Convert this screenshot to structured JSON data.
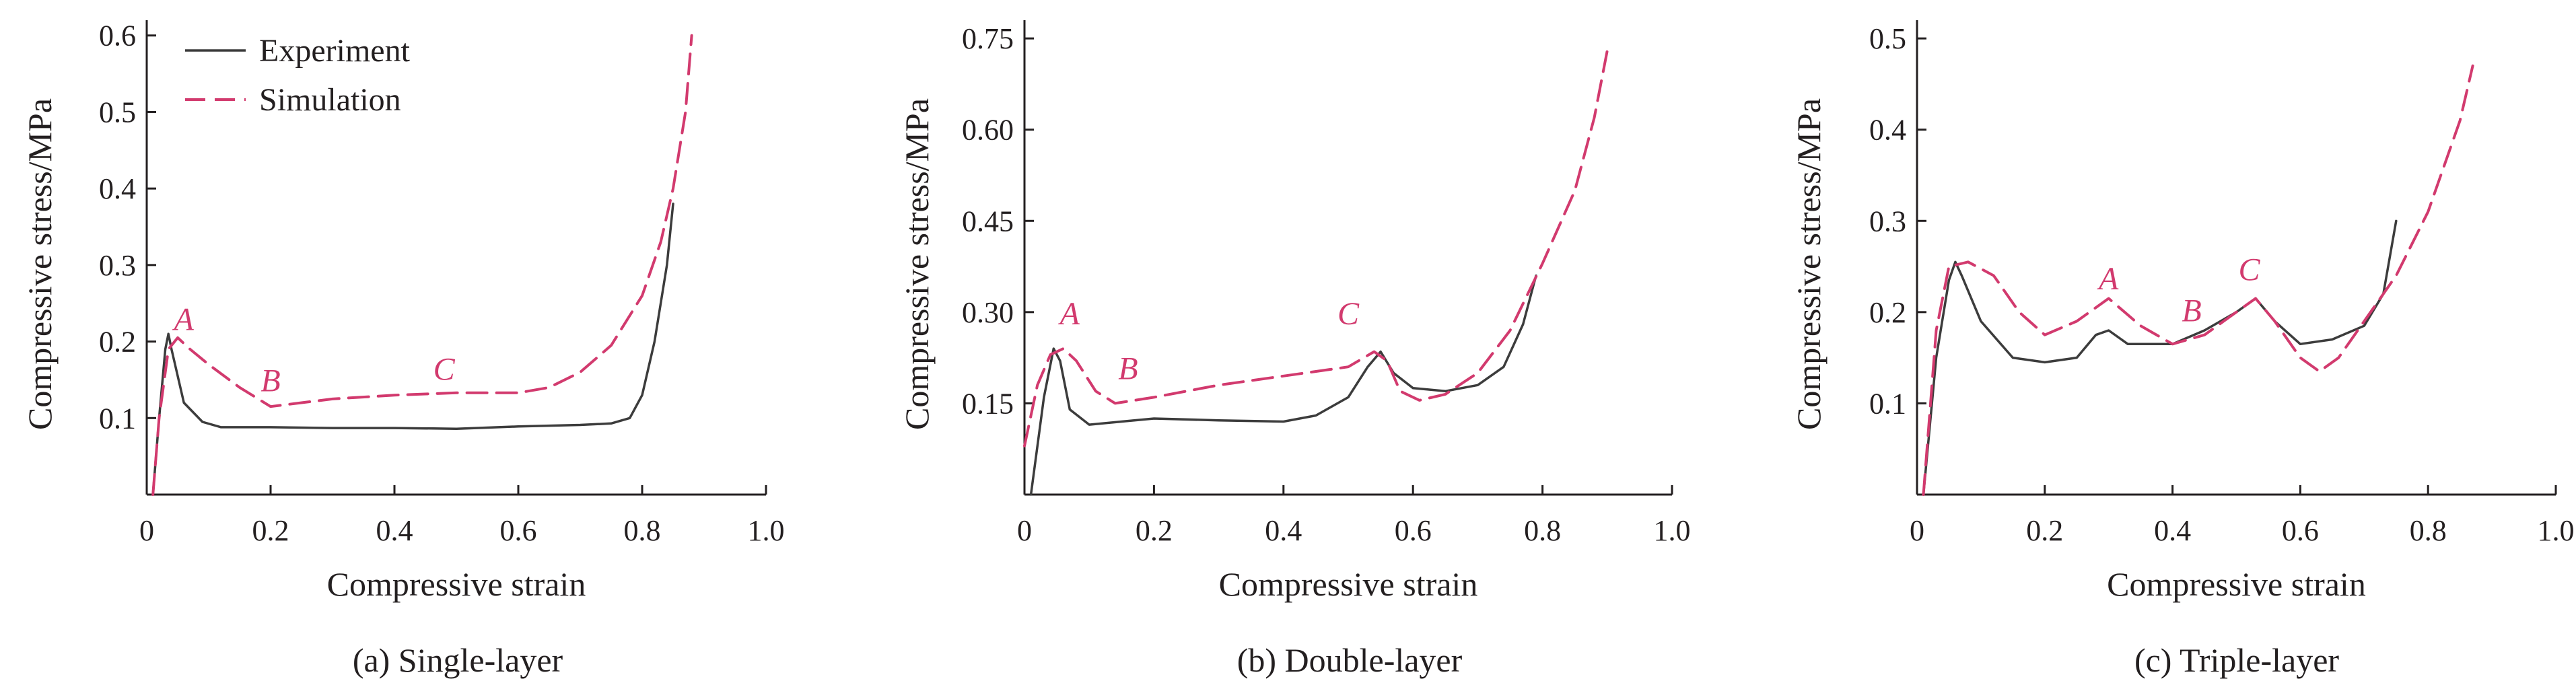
{
  "colors": {
    "experiment": "#3c3c3c",
    "simulation": "#d23a6e",
    "axis": "#231f20"
  },
  "legend": {
    "experiment": "Experiment",
    "simulation": "Simulation"
  },
  "chart_data": [
    {
      "type": "line",
      "caption": "(a) Single-layer",
      "xlabel": "Compressive strain",
      "ylabel": "Compressive stress/MPa",
      "xlim": [
        0,
        1.0
      ],
      "ylim": [
        0,
        0.62
      ],
      "x_ticks": [
        "0",
        "0.2",
        "0.4",
        "0.6",
        "0.8",
        "1.0"
      ],
      "x_tick_values": [
        0,
        0.2,
        0.4,
        0.6,
        0.8,
        1.0
      ],
      "y_ticks": [
        "0.1",
        "0.2",
        "0.3",
        "0.4",
        "0.5",
        "0.6"
      ],
      "y_tick_values": [
        0.1,
        0.2,
        0.3,
        0.4,
        0.5,
        0.6
      ],
      "legend": true,
      "series": [
        {
          "name": "Experiment",
          "style": "solid",
          "points": [
            [
              0.01,
              0
            ],
            [
              0.02,
              0.1
            ],
            [
              0.03,
              0.19
            ],
            [
              0.035,
              0.21
            ],
            [
              0.04,
              0.19
            ],
            [
              0.06,
              0.12
            ],
            [
              0.09,
              0.095
            ],
            [
              0.12,
              0.088
            ],
            [
              0.2,
              0.088
            ],
            [
              0.3,
              0.087
            ],
            [
              0.4,
              0.087
            ],
            [
              0.5,
              0.086
            ],
            [
              0.6,
              0.089
            ],
            [
              0.7,
              0.091
            ],
            [
              0.75,
              0.093
            ],
            [
              0.78,
              0.1
            ],
            [
              0.8,
              0.13
            ],
            [
              0.82,
              0.2
            ],
            [
              0.84,
              0.3
            ],
            [
              0.85,
              0.38
            ]
          ]
        },
        {
          "name": "Simulation",
          "style": "dashed",
          "points": [
            [
              0.01,
              0
            ],
            [
              0.02,
              0.1
            ],
            [
              0.035,
              0.19
            ],
            [
              0.05,
              0.205
            ],
            [
              0.07,
              0.19
            ],
            [
              0.1,
              0.17
            ],
            [
              0.15,
              0.14
            ],
            [
              0.2,
              0.115
            ],
            [
              0.25,
              0.12
            ],
            [
              0.3,
              0.125
            ],
            [
              0.4,
              0.13
            ],
            [
              0.5,
              0.133
            ],
            [
              0.6,
              0.133
            ],
            [
              0.65,
              0.14
            ],
            [
              0.7,
              0.16
            ],
            [
              0.75,
              0.195
            ],
            [
              0.8,
              0.26
            ],
            [
              0.83,
              0.33
            ],
            [
              0.85,
              0.4
            ],
            [
              0.87,
              0.5
            ],
            [
              0.88,
              0.6
            ]
          ]
        }
      ],
      "annotations": [
        {
          "text": "A",
          "x": 0.06,
          "y": 0.215
        },
        {
          "text": "B",
          "x": 0.2,
          "y": 0.135
        },
        {
          "text": "C",
          "x": 0.48,
          "y": 0.15
        }
      ]
    },
    {
      "type": "line",
      "caption": "(b) Double-layer",
      "xlabel": "Compressive strain",
      "ylabel": "Compressive stress/MPa",
      "xlim": [
        0,
        1.0
      ],
      "ylim": [
        0,
        0.78
      ],
      "x_ticks": [
        "0",
        "0.2",
        "0.4",
        "0.6",
        "0.8",
        "1.0"
      ],
      "x_tick_values": [
        0,
        0.2,
        0.4,
        0.6,
        0.8,
        1.0
      ],
      "y_ticks": [
        "0.15",
        "0.30",
        "0.45",
        "0.60",
        "0.75"
      ],
      "y_tick_values": [
        0.15,
        0.3,
        0.45,
        0.6,
        0.75
      ],
      "legend": false,
      "series": [
        {
          "name": "Experiment",
          "style": "solid",
          "points": [
            [
              0.01,
              0
            ],
            [
              0.03,
              0.16
            ],
            [
              0.045,
              0.24
            ],
            [
              0.055,
              0.22
            ],
            [
              0.07,
              0.14
            ],
            [
              0.1,
              0.115
            ],
            [
              0.15,
              0.12
            ],
            [
              0.2,
              0.125
            ],
            [
              0.3,
              0.122
            ],
            [
              0.4,
              0.12
            ],
            [
              0.45,
              0.13
            ],
            [
              0.5,
              0.16
            ],
            [
              0.53,
              0.21
            ],
            [
              0.55,
              0.235
            ],
            [
              0.57,
              0.2
            ],
            [
              0.6,
              0.175
            ],
            [
              0.65,
              0.17
            ],
            [
              0.7,
              0.18
            ],
            [
              0.74,
              0.21
            ],
            [
              0.77,
              0.28
            ],
            [
              0.79,
              0.36
            ]
          ]
        },
        {
          "name": "Simulation",
          "style": "dashed",
          "points": [
            [
              0.0,
              0.08
            ],
            [
              0.02,
              0.18
            ],
            [
              0.04,
              0.23
            ],
            [
              0.06,
              0.24
            ],
            [
              0.08,
              0.22
            ],
            [
              0.11,
              0.17
            ],
            [
              0.14,
              0.15
            ],
            [
              0.2,
              0.16
            ],
            [
              0.3,
              0.18
            ],
            [
              0.4,
              0.195
            ],
            [
              0.5,
              0.21
            ],
            [
              0.54,
              0.235
            ],
            [
              0.56,
              0.22
            ],
            [
              0.58,
              0.17
            ],
            [
              0.61,
              0.155
            ],
            [
              0.65,
              0.165
            ],
            [
              0.7,
              0.2
            ],
            [
              0.75,
              0.27
            ],
            [
              0.8,
              0.38
            ],
            [
              0.85,
              0.5
            ],
            [
              0.88,
              0.62
            ],
            [
              0.9,
              0.73
            ]
          ]
        }
      ],
      "annotations": [
        {
          "text": "A",
          "x": 0.07,
          "y": 0.28
        },
        {
          "text": "B",
          "x": 0.16,
          "y": 0.19
        },
        {
          "text": "C",
          "x": 0.5,
          "y": 0.28
        }
      ]
    },
    {
      "type": "line",
      "caption": "(c) Triple-layer",
      "xlabel": "Compressive strain",
      "ylabel": "Compressive stress/MPa",
      "xlim": [
        0,
        1.0
      ],
      "ylim": [
        0,
        0.52
      ],
      "x_ticks": [
        "0",
        "0.2",
        "0.4",
        "0.6",
        "0.8",
        "1.0"
      ],
      "x_tick_values": [
        0,
        0.2,
        0.4,
        0.6,
        0.8,
        1.0
      ],
      "y_ticks": [
        "0.1",
        "0.2",
        "0.3",
        "0.4",
        "0.5"
      ],
      "y_tick_values": [
        0.1,
        0.2,
        0.3,
        0.4,
        0.5
      ],
      "legend": false,
      "series": [
        {
          "name": "Experiment",
          "style": "solid",
          "points": [
            [
              0.01,
              0
            ],
            [
              0.03,
              0.15
            ],
            [
              0.05,
              0.235
            ],
            [
              0.06,
              0.255
            ],
            [
              0.07,
              0.24
            ],
            [
              0.1,
              0.19
            ],
            [
              0.15,
              0.15
            ],
            [
              0.2,
              0.145
            ],
            [
              0.25,
              0.15
            ],
            [
              0.28,
              0.175
            ],
            [
              0.3,
              0.18
            ],
            [
              0.33,
              0.165
            ],
            [
              0.4,
              0.165
            ],
            [
              0.45,
              0.18
            ],
            [
              0.5,
              0.2
            ],
            [
              0.53,
              0.215
            ],
            [
              0.56,
              0.19
            ],
            [
              0.6,
              0.165
            ],
            [
              0.65,
              0.17
            ],
            [
              0.7,
              0.185
            ],
            [
              0.73,
              0.22
            ],
            [
              0.75,
              0.3
            ]
          ]
        },
        {
          "name": "Simulation",
          "style": "dashed",
          "points": [
            [
              0.01,
              0
            ],
            [
              0.03,
              0.18
            ],
            [
              0.05,
              0.25
            ],
            [
              0.08,
              0.255
            ],
            [
              0.12,
              0.24
            ],
            [
              0.16,
              0.2
            ],
            [
              0.2,
              0.175
            ],
            [
              0.25,
              0.19
            ],
            [
              0.3,
              0.215
            ],
            [
              0.35,
              0.185
            ],
            [
              0.4,
              0.165
            ],
            [
              0.45,
              0.175
            ],
            [
              0.5,
              0.2
            ],
            [
              0.53,
              0.215
            ],
            [
              0.56,
              0.19
            ],
            [
              0.6,
              0.15
            ],
            [
              0.63,
              0.135
            ],
            [
              0.66,
              0.15
            ],
            [
              0.7,
              0.19
            ],
            [
              0.75,
              0.24
            ],
            [
              0.8,
              0.31
            ],
            [
              0.85,
              0.41
            ],
            [
              0.87,
              0.47
            ]
          ]
        }
      ],
      "annotations": [
        {
          "text": "A",
          "x": 0.3,
          "y": 0.225
        },
        {
          "text": "B",
          "x": 0.43,
          "y": 0.19
        },
        {
          "text": "C",
          "x": 0.52,
          "y": 0.235
        }
      ]
    }
  ]
}
